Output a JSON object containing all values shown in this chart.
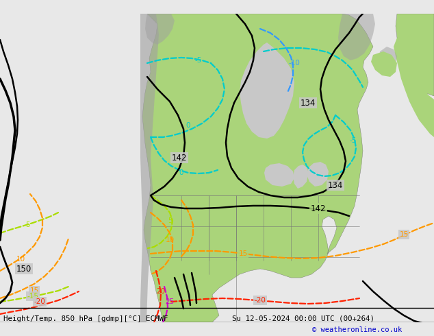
{
  "title_left": "Height/Temp. 850 hPa [gdmp][°C] ECMWF",
  "title_right": "Su 12-05-2024 00:00 UTC (00+264)",
  "copyright": "© weatheronline.co.uk",
  "bg_color": "#c8c8c8",
  "land_color": "#aad47a",
  "gray_color": "#a0a0a0",
  "fig_width": 6.34,
  "fig_height": 4.9,
  "dpi": 100,
  "cyan": "#00cccc",
  "blue": "#3399ff",
  "lime": "#aadd00",
  "orange": "#ff9900",
  "red": "#ff2200",
  "magenta": "#cc00cc",
  "black": "#000000"
}
